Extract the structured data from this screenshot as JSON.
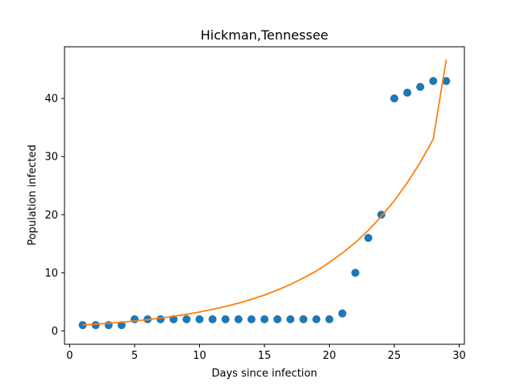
{
  "chart_data": {
    "type": "scatter",
    "title": "Hickman,Tennessee",
    "xlabel": "Days since infection",
    "ylabel": "Population infected",
    "xlim": [
      -0.4,
      30.4
    ],
    "ylim": [
      -2.3,
      48.9
    ],
    "xticks": [
      0,
      5,
      10,
      15,
      20,
      25,
      30
    ],
    "yticks": [
      0,
      10,
      20,
      30,
      40
    ],
    "grid": false,
    "legend": "none",
    "series": [
      {
        "kind": "scatter",
        "color": "#1f77b4",
        "x": [
          1,
          2,
          3,
          4,
          5,
          6,
          7,
          8,
          9,
          10,
          11,
          12,
          13,
          14,
          15,
          16,
          17,
          18,
          19,
          20,
          21,
          22,
          23,
          24,
          25,
          26,
          27,
          28,
          29
        ],
        "y": [
          1,
          1,
          1,
          1,
          2,
          2,
          2,
          2,
          2,
          2,
          2,
          2,
          2,
          2,
          2,
          2,
          2,
          2,
          2,
          2,
          3,
          10,
          16,
          20,
          40,
          41,
          42,
          43,
          43
        ]
      },
      {
        "kind": "line",
        "color": "#ff7f0e",
        "x": [
          1,
          2,
          3,
          4,
          5,
          6,
          7,
          8,
          9,
          10,
          11,
          12,
          13,
          14,
          15,
          16,
          17,
          18,
          19,
          20,
          21,
          22,
          23,
          24,
          25,
          26,
          27,
          28,
          29
        ],
        "y": [
          1.02,
          1.16,
          1.32,
          1.5,
          1.71,
          1.94,
          2.21,
          2.51,
          2.86,
          3.25,
          3.7,
          4.2,
          4.78,
          5.44,
          6.18,
          7.03,
          8.0,
          9.1,
          10.3,
          11.8,
          13.4,
          15.2,
          17.3,
          19.7,
          22.4,
          25.5,
          29.0,
          33.0,
          46.7
        ]
      }
    ]
  }
}
